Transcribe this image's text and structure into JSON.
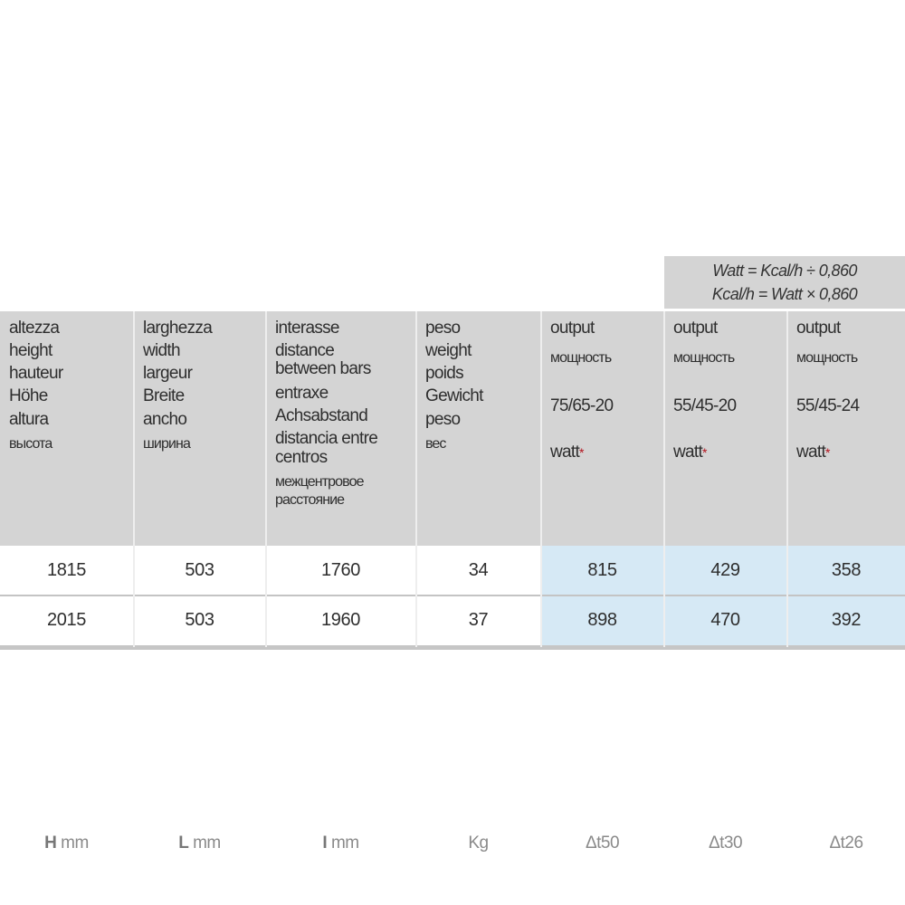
{
  "formula": {
    "line1": "Watt = Kcal/h ÷ 0,860",
    "line2": "Kcal/h = Watt × 0,860"
  },
  "columns": [
    {
      "labels": [
        "altezza",
        "height",
        "hauteur",
        "Höhe",
        "altura",
        "высота"
      ],
      "unit_symbol": "H",
      "unit": "mm"
    },
    {
      "labels": [
        "larghezza",
        "width",
        "largeur",
        "Breite",
        "ancho",
        "ширина"
      ],
      "unit_symbol": "L",
      "unit": "mm"
    },
    {
      "labels": [
        "interasse",
        "distance",
        "between bars",
        "entraxe",
        "Achsabstand",
        "distancia entre",
        "centros",
        "межцентровое",
        "расстояние"
      ],
      "unit_symbol": "I",
      "unit": "mm"
    },
    {
      "labels": [
        "peso",
        "weight",
        "poids",
        "Gewicht",
        "peso",
        "вес"
      ],
      "unit": "Kg"
    },
    {
      "labels": [
        "output",
        "мощность",
        "75/65-20",
        "watt"
      ],
      "star": "*",
      "unit": "Δt50"
    },
    {
      "labels": [
        "output",
        "мощность",
        "55/45-20",
        "watt"
      ],
      "star": "*",
      "unit": "Δt30"
    },
    {
      "labels": [
        "output",
        "мощность",
        "55/45-24",
        "watt"
      ],
      "star": "*",
      "unit": "Δt26"
    }
  ],
  "rows": [
    [
      "1815",
      "503",
      "1760",
      "34",
      "815",
      "429",
      "358"
    ],
    [
      "2015",
      "503",
      "1960",
      "37",
      "898",
      "470",
      "392"
    ]
  ],
  "colors": {
    "header_bg": "#d4d4d4",
    "output_cell_bg": "#d6e9f5",
    "star": "#b3121c"
  }
}
